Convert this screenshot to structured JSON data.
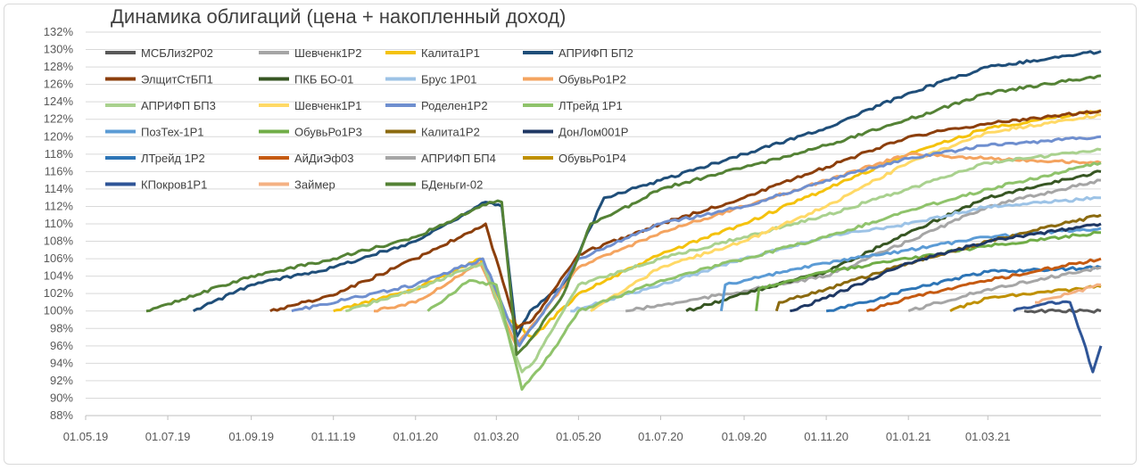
{
  "chart_data": {
    "type": "line",
    "title": "Динамика облигаций (цена + накопленный доход)",
    "xlabel": "",
    "ylabel": "",
    "x_range": [
      "2019-05-01",
      "2021-05-24"
    ],
    "x_ticks": [
      "01.05.19",
      "01.07.19",
      "01.09.19",
      "01.11.19",
      "01.01.20",
      "01.03.20",
      "01.05.20",
      "01.07.20",
      "01.09.20",
      "01.11.20",
      "01.01.21",
      "01.03.21"
    ],
    "ylim": [
      88,
      132
    ],
    "y_ticks": [
      "88%",
      "90%",
      "92%",
      "94%",
      "96%",
      "98%",
      "100%",
      "102%",
      "104%",
      "106%",
      "108%",
      "110%",
      "112%",
      "114%",
      "116%",
      "118%",
      "120%",
      "122%",
      "124%",
      "126%",
      "128%",
      "130%",
      "132%"
    ],
    "grid": true,
    "legend_position": "top-left",
    "series": [
      {
        "name": "МСБЛиз2Р02",
        "color": "#595959",
        "points": [
          [
            "2021-03-28",
            100
          ],
          [
            "2021-05-24",
            100
          ]
        ]
      },
      {
        "name": "Шевченк1Р2",
        "color": "#a5a5a5",
        "points": [
          [
            "2020-06-05",
            100
          ],
          [
            "2020-07-15",
            101
          ],
          [
            "2020-09-01",
            102.3
          ],
          [
            "2020-11-01",
            104
          ],
          [
            "2021-01-01",
            108
          ],
          [
            "2021-03-01",
            112
          ],
          [
            "2021-05-24",
            115
          ]
        ]
      },
      {
        "name": "Калита1Р1",
        "color": "#f4c20d",
        "points": [
          [
            "2019-11-01",
            100
          ],
          [
            "2020-01-01",
            102.5
          ],
          [
            "2020-02-18",
            106
          ],
          [
            "2020-03-10",
            99
          ],
          [
            "2020-03-28",
            97
          ],
          [
            "2020-05-01",
            102
          ],
          [
            "2020-07-01",
            106.5
          ],
          [
            "2020-09-01",
            110
          ],
          [
            "2020-11-01",
            114
          ],
          [
            "2021-01-01",
            118
          ],
          [
            "2021-03-01",
            121
          ],
          [
            "2021-05-24",
            123
          ]
        ]
      },
      {
        "name": "АПРИФП БП2",
        "color": "#1f4e79",
        "points": [
          [
            "2019-07-20",
            100
          ],
          [
            "2019-09-01",
            103
          ],
          [
            "2019-11-01",
            105
          ],
          [
            "2020-01-01",
            108
          ],
          [
            "2020-02-22",
            112.5
          ],
          [
            "2020-03-05",
            112
          ],
          [
            "2020-03-16",
            97
          ],
          [
            "2020-03-26",
            100
          ],
          [
            "2020-04-20",
            103
          ],
          [
            "2020-05-05",
            108
          ],
          [
            "2020-05-20",
            113
          ],
          [
            "2020-07-01",
            115
          ],
          [
            "2020-09-01",
            118
          ],
          [
            "2020-11-01",
            121
          ],
          [
            "2021-01-01",
            125
          ],
          [
            "2021-03-01",
            128
          ],
          [
            "2021-05-24",
            129.8
          ]
        ]
      },
      {
        "name": "ЭлщитСтБП1",
        "color": "#8c3f0c",
        "points": [
          [
            "2019-09-15",
            100
          ],
          [
            "2019-11-01",
            101.8
          ],
          [
            "2020-01-01",
            106
          ],
          [
            "2020-02-22",
            110
          ],
          [
            "2020-03-16",
            98
          ],
          [
            "2020-03-28",
            99
          ],
          [
            "2020-05-01",
            106.5
          ],
          [
            "2020-07-01",
            110
          ],
          [
            "2020-09-01",
            113
          ],
          [
            "2020-11-01",
            116.5
          ],
          [
            "2021-01-01",
            120
          ],
          [
            "2021-03-01",
            121.5
          ],
          [
            "2021-05-24",
            123
          ]
        ]
      },
      {
        "name": "ПКБ БО-01",
        "color": "#375623",
        "points": [
          [
            "2020-07-20",
            100
          ],
          [
            "2020-09-01",
            102
          ],
          [
            "2020-11-01",
            104.5
          ],
          [
            "2021-01-01",
            109
          ],
          [
            "2021-03-01",
            113
          ],
          [
            "2021-05-24",
            116
          ]
        ]
      },
      {
        "name": "Брус 1Р01",
        "color": "#9dc3e6",
        "points": [
          [
            "2020-04-25",
            100
          ],
          [
            "2020-07-01",
            103
          ],
          [
            "2020-09-01",
            106
          ],
          [
            "2020-11-01",
            108.5
          ],
          [
            "2021-01-01",
            110
          ],
          [
            "2021-03-01",
            112
          ],
          [
            "2021-05-24",
            113
          ]
        ]
      },
      {
        "name": "ОбувьРо1Р2",
        "color": "#f4a460",
        "points": [
          [
            "2019-12-01",
            100
          ],
          [
            "2020-01-01",
            101
          ],
          [
            "2020-02-18",
            105.5
          ],
          [
            "2020-03-16",
            96
          ],
          [
            "2020-04-05",
            100
          ],
          [
            "2020-05-01",
            105
          ],
          [
            "2020-07-01",
            109
          ],
          [
            "2020-09-01",
            112
          ],
          [
            "2020-11-01",
            115
          ],
          [
            "2021-01-01",
            118
          ],
          [
            "2021-03-01",
            117.5
          ],
          [
            "2021-05-24",
            117
          ]
        ]
      },
      {
        "name": "АПРИФП БП3",
        "color": "#a9d18e",
        "points": [
          [
            "2019-11-10",
            100
          ],
          [
            "2020-01-01",
            102.5
          ],
          [
            "2020-02-20",
            105.5
          ],
          [
            "2020-03-20",
            93
          ],
          [
            "2020-03-28",
            94
          ],
          [
            "2020-05-01",
            103
          ],
          [
            "2020-07-01",
            106
          ],
          [
            "2020-09-01",
            108.5
          ],
          [
            "2020-11-01",
            111
          ],
          [
            "2021-01-01",
            114
          ],
          [
            "2021-03-01",
            117
          ],
          [
            "2021-05-24",
            118.5
          ]
        ]
      },
      {
        "name": "Шевченк1Р1",
        "color": "#ffd966",
        "points": [
          [
            "2020-05-10",
            100
          ],
          [
            "2020-07-01",
            105
          ],
          [
            "2020-09-01",
            108
          ],
          [
            "2020-11-01",
            112
          ],
          [
            "2021-01-01",
            117
          ],
          [
            "2021-03-01",
            120.5
          ],
          [
            "2021-05-24",
            122.5
          ]
        ]
      },
      {
        "name": "Роделен1Р2",
        "color": "#6f8fcf",
        "points": [
          [
            "2019-10-01",
            100
          ],
          [
            "2020-01-01",
            103
          ],
          [
            "2020-02-20",
            106
          ],
          [
            "2020-03-18",
            96
          ],
          [
            "2020-04-10",
            101
          ],
          [
            "2020-05-01",
            106
          ],
          [
            "2020-07-01",
            110
          ],
          [
            "2020-09-01",
            112
          ],
          [
            "2020-11-01",
            115
          ],
          [
            "2021-01-01",
            117.5
          ],
          [
            "2021-03-01",
            119
          ],
          [
            "2021-05-24",
            120
          ]
        ]
      },
      {
        "name": "ЛТрейд 1Р1",
        "color": "#8fc36b",
        "points": [
          [
            "2020-01-10",
            100
          ],
          [
            "2020-02-10",
            103.5
          ],
          [
            "2020-03-01",
            103
          ],
          [
            "2020-03-20",
            91
          ],
          [
            "2020-04-10",
            95
          ],
          [
            "2020-05-01",
            100
          ],
          [
            "2020-07-01",
            103.5
          ],
          [
            "2020-09-01",
            106
          ],
          [
            "2020-11-01",
            108.5
          ],
          [
            "2021-01-01",
            111.5
          ],
          [
            "2021-03-01",
            114
          ],
          [
            "2021-05-24",
            117
          ]
        ]
      },
      {
        "name": "ПозТех-1Р1",
        "color": "#5b9bd5",
        "points": [
          [
            "2020-08-15",
            100
          ],
          [
            "2020-08-18",
            103
          ],
          [
            "2020-09-01",
            103.5
          ],
          [
            "2020-11-01",
            105.5
          ],
          [
            "2021-01-01",
            107
          ],
          [
            "2021-03-01",
            108.5
          ],
          [
            "2021-05-24",
            109.5
          ]
        ]
      },
      {
        "name": "ОбувьРо1Р3",
        "color": "#70ad47",
        "points": [
          [
            "2020-09-10",
            100
          ],
          [
            "2020-09-12",
            102.5
          ],
          [
            "2020-11-01",
            104.5
          ],
          [
            "2021-01-01",
            106
          ],
          [
            "2021-03-01",
            107.5
          ],
          [
            "2021-05-24",
            109
          ]
        ]
      },
      {
        "name": "Калита1Р2",
        "color": "#8b6a0f",
        "points": [
          [
            "2020-09-25",
            100
          ],
          [
            "2020-09-27",
            101
          ],
          [
            "2020-11-01",
            102.5
          ],
          [
            "2021-01-01",
            105.5
          ],
          [
            "2021-03-01",
            108
          ],
          [
            "2021-05-24",
            111
          ]
        ]
      },
      {
        "name": "ДонЛом001Р",
        "color": "#1f3864",
        "points": [
          [
            "2020-10-05",
            100
          ],
          [
            "2020-11-01",
            101.5
          ],
          [
            "2021-01-01",
            105.5
          ],
          [
            "2021-03-01",
            108
          ],
          [
            "2021-05-24",
            110
          ]
        ]
      },
      {
        "name": "ЛТрейд 1Р2",
        "color": "#2e75b6",
        "points": [
          [
            "2020-11-01",
            100
          ],
          [
            "2020-12-01",
            101
          ],
          [
            "2021-01-01",
            102.5
          ],
          [
            "2021-03-01",
            104.5
          ],
          [
            "2021-05-24",
            105
          ]
        ]
      },
      {
        "name": "АйДиЭф03",
        "color": "#c55a11",
        "points": [
          [
            "2020-12-01",
            100
          ],
          [
            "2021-01-01",
            101.5
          ],
          [
            "2021-03-01",
            103.5
          ],
          [
            "2021-05-24",
            106
          ]
        ]
      },
      {
        "name": "АПРИФП БП4",
        "color": "#a6a6a6",
        "points": [
          [
            "2021-01-01",
            100
          ],
          [
            "2021-03-01",
            102.5
          ],
          [
            "2021-05-24",
            105
          ]
        ]
      },
      {
        "name": "ОбувьРо1Р4",
        "color": "#bf9000",
        "points": [
          [
            "2021-02-01",
            100
          ],
          [
            "2021-03-01",
            101.5
          ],
          [
            "2021-05-24",
            102.8
          ]
        ]
      },
      {
        "name": "КПокров1Р1",
        "color": "#2f5597",
        "points": [
          [
            "2021-03-20",
            100
          ],
          [
            "2021-04-15",
            101
          ],
          [
            "2021-05-01",
            101
          ],
          [
            "2021-05-10",
            97
          ],
          [
            "2021-05-18",
            93
          ],
          [
            "2021-05-24",
            96
          ]
        ]
      },
      {
        "name": "Займер",
        "color": "#f4b183",
        "points": [
          [
            "2021-04-05",
            101
          ],
          [
            "2021-05-24",
            103
          ]
        ]
      },
      {
        "name": "БДеньги-02",
        "color": "#548235",
        "points": [
          [
            "2019-06-15",
            100
          ],
          [
            "2019-07-01",
            100.8
          ],
          [
            "2019-09-01",
            104
          ],
          [
            "2019-11-01",
            106
          ],
          [
            "2020-01-01",
            108.5
          ],
          [
            "2020-02-25",
            112.5
          ],
          [
            "2020-03-05",
            112.5
          ],
          [
            "2020-03-16",
            95
          ],
          [
            "2020-03-28",
            97
          ],
          [
            "2020-04-20",
            102
          ],
          [
            "2020-05-10",
            110
          ],
          [
            "2020-05-25",
            111
          ],
          [
            "2020-07-01",
            114
          ],
          [
            "2020-09-01",
            116.5
          ],
          [
            "2020-11-01",
            119
          ],
          [
            "2021-01-01",
            122
          ],
          [
            "2021-03-01",
            125
          ],
          [
            "2021-05-24",
            127
          ]
        ]
      }
    ]
  }
}
